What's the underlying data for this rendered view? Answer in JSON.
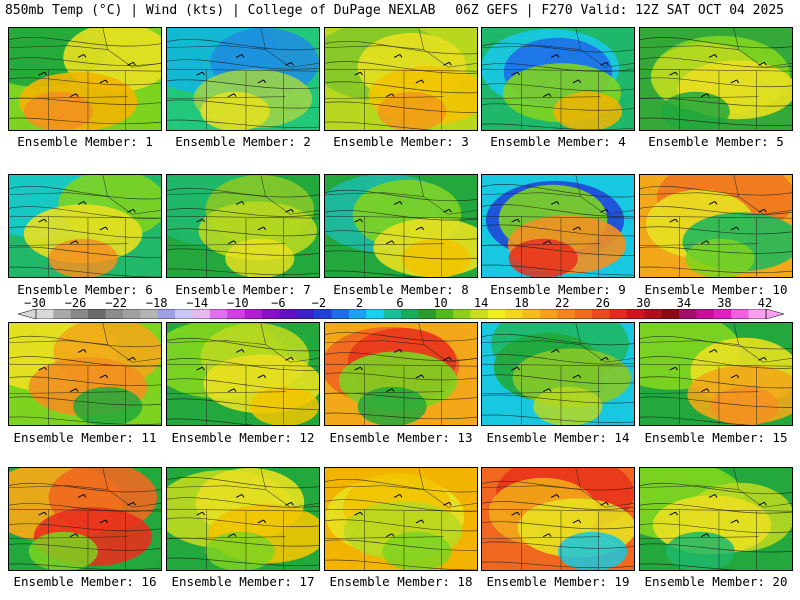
{
  "header": {
    "left": "850mb Temp (°C) | Wind (kts) | College of DuPage NEXLAB",
    "right": "06Z GEFS | F270 Valid: 12Z SAT OCT 04 2025"
  },
  "panels": [
    {
      "label": "Ensemble Member: 1",
      "colors": [
        "#7ed321",
        "#22a83c",
        "#e8e020",
        "#f2b400",
        "#f39020"
      ]
    },
    {
      "label": "Ensemble Member: 2",
      "colors": [
        "#22c87a",
        "#13b8d8",
        "#1f8fe0",
        "#9ad34a",
        "#e8e020"
      ]
    },
    {
      "label": "Ensemble Member: 3",
      "colors": [
        "#b8d820",
        "#86c828",
        "#e8e020",
        "#f2c400",
        "#f29a18"
      ]
    },
    {
      "label": "Ensemble Member: 4",
      "colors": [
        "#1fb86a",
        "#18c7e0",
        "#1f6ee8",
        "#7ed321",
        "#f2b400"
      ]
    },
    {
      "label": "Ensemble Member: 5",
      "colors": [
        "#34a838",
        "#7ed321",
        "#b8d820",
        "#e8e020",
        "#22a83c"
      ]
    },
    {
      "label": "Ensemble Member: 6",
      "colors": [
        "#22b86a",
        "#18c8c8",
        "#7ed321",
        "#e8e020",
        "#f39020"
      ]
    },
    {
      "label": "Ensemble Member: 7",
      "colors": [
        "#22a83c",
        "#1fb86a",
        "#86c828",
        "#b8d820",
        "#e8e020"
      ]
    },
    {
      "label": "Ensemble Member: 8",
      "colors": [
        "#22a83c",
        "#1fb8a0",
        "#7ed321",
        "#e8e020",
        "#f2c400"
      ]
    },
    {
      "label": "Ensemble Member: 9",
      "colors": [
        "#18c8e0",
        "#1f4fd8",
        "#7ed321",
        "#f39020",
        "#e8301c"
      ]
    },
    {
      "label": "Ensemble Member: 10",
      "colors": [
        "#f2a818",
        "#f07820",
        "#e8e020",
        "#22b85a",
        "#7ed321"
      ]
    },
    {
      "label": "Ensemble Member: 11",
      "colors": [
        "#7ed321",
        "#e8e020",
        "#f2a818",
        "#f39020",
        "#22a83c"
      ]
    },
    {
      "label": "Ensemble Member: 12",
      "colors": [
        "#22a83c",
        "#7ed321",
        "#b8d820",
        "#e8e020",
        "#f2c400"
      ]
    },
    {
      "label": "Ensemble Member: 13",
      "colors": [
        "#f2a818",
        "#f06820",
        "#e8381c",
        "#7ed321",
        "#22a83c"
      ]
    },
    {
      "label": "Ensemble Member: 14",
      "colors": [
        "#18c8e0",
        "#1fb86a",
        "#22a83c",
        "#86c828",
        "#b8d820"
      ]
    },
    {
      "label": "Ensemble Member: 15",
      "colors": [
        "#22a83c",
        "#7ed321",
        "#e8e020",
        "#f2a818",
        "#f39020"
      ]
    },
    {
      "label": "Ensemble Member: 16",
      "colors": [
        "#22a83c",
        "#f2a818",
        "#f06820",
        "#e8301c",
        "#7ed321"
      ]
    },
    {
      "label": "Ensemble Member: 17",
      "colors": [
        "#22a83c",
        "#b8d820",
        "#e8e020",
        "#f2c400",
        "#7ed321"
      ]
    },
    {
      "label": "Ensemble Member: 18",
      "colors": [
        "#f2b400",
        "#e8e020",
        "#f2c400",
        "#b8d820",
        "#7ed321"
      ]
    },
    {
      "label": "Ensemble Member: 19",
      "colors": [
        "#f06820",
        "#e8381c",
        "#f2a818",
        "#e8e020",
        "#18c8e0"
      ]
    },
    {
      "label": "Ensemble Member: 20",
      "colors": [
        "#22a83c",
        "#7ed321",
        "#b8d820",
        "#e8e020",
        "#1fb86a"
      ]
    }
  ],
  "colorbar": {
    "labels": [
      "−30",
      "−26",
      "−22",
      "−18",
      "−14",
      "−10",
      "−6",
      "−2",
      "2",
      "6",
      "10",
      "14",
      "18",
      "22",
      "26",
      "30",
      "34",
      "38",
      "42"
    ],
    "colors": [
      "#d8d8d8",
      "#a8a8a8",
      "#888888",
      "#6a6a6a",
      "#8c8c8c",
      "#a0a0a0",
      "#b4b4b4",
      "#9e9ee8",
      "#c8c8f8",
      "#e8b8f0",
      "#e070f0",
      "#d040e0",
      "#b020d0",
      "#8a10c8",
      "#6010c0",
      "#3c20c8",
      "#2040d8",
      "#1e6ee8",
      "#1ea0f0",
      "#1ad0f0",
      "#1abf9a",
      "#1aac5a",
      "#2a9a2a",
      "#55b71e",
      "#8ecf1e",
      "#c9dd1e",
      "#f0f01e",
      "#f5d61e",
      "#f7bb1e",
      "#f6a01e",
      "#f3861e",
      "#ef6b1e",
      "#ea4b1e",
      "#e22a1e",
      "#d0141e",
      "#b0101e",
      "#8a0a14",
      "#a0106a",
      "#c8109a",
      "#e020c0",
      "#f060e0",
      "#f8a0f0"
    ]
  }
}
